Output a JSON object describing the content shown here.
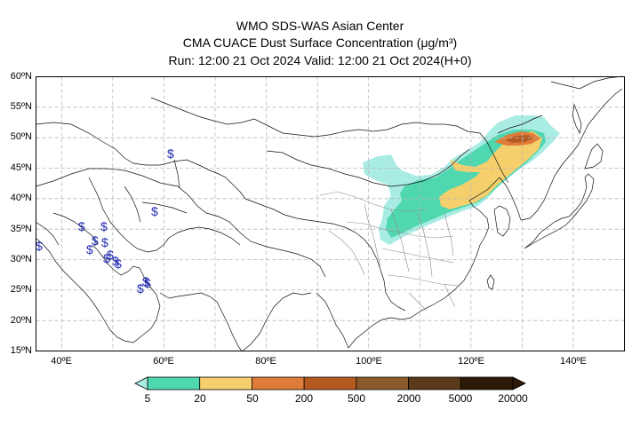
{
  "header": {
    "line1": "WMO SDS-WAS Asian Center",
    "line2": "CMA CUACE Dust Surface Concentration (μg/m³)",
    "line3": "Run: 12:00 21 Oct 2024    Valid: 12:00 21 Oct 2024(H+0)"
  },
  "axes": {
    "lat_labels": [
      "60ºN",
      "55ºN",
      "50ºN",
      "45ºN",
      "40ºN",
      "35ºN",
      "30ºN",
      "25ºN",
      "20ºN",
      "15ºN"
    ],
    "lon_labels": [
      "40ºE",
      "60ºE",
      "80ºE",
      "100ºE",
      "120ºE",
      "140ºE"
    ],
    "lon_range": [
      35,
      150
    ],
    "lat_range": [
      15,
      60
    ]
  },
  "legend": {
    "labels": [
      "5",
      "20",
      "50",
      "200",
      "500",
      "2000",
      "5000",
      "20000"
    ],
    "colors": [
      "#a9ece4",
      "#4fd8b0",
      "#f4cf6c",
      "#e07c3a",
      "#b45a20",
      "#8b5a2b",
      "#5a3a1a",
      "#2e1a08"
    ]
  },
  "symbol": "$",
  "symbol_color": "#1f2ab0"
}
